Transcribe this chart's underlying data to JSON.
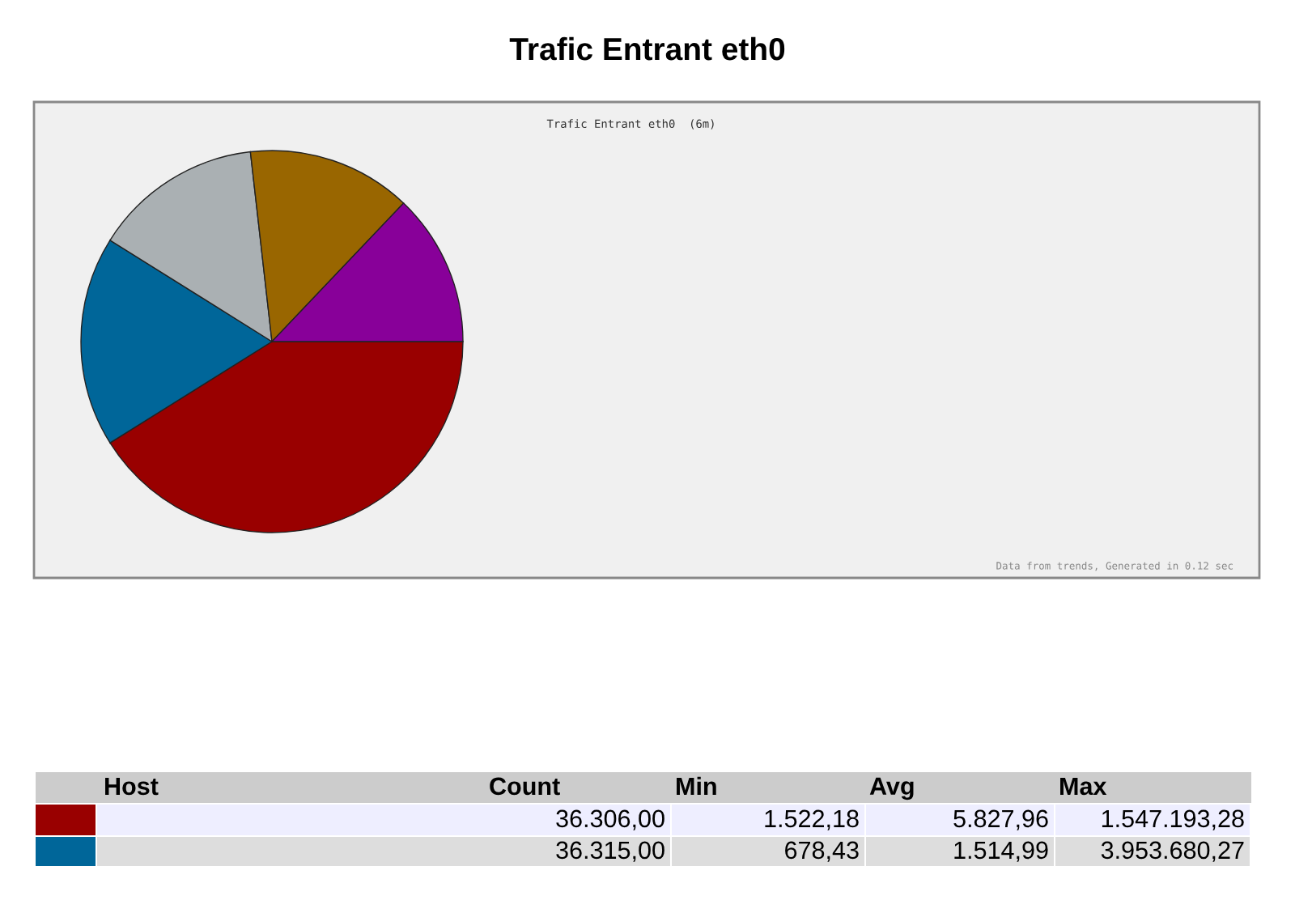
{
  "chart_data": {
    "type": "pie",
    "title": "Trafic Entrant eth0",
    "subtitle": "Trafic Entrant eth0  (6m)",
    "categories": [
      null,
      null,
      null,
      null,
      null
    ],
    "values": [
      41.1,
      17.8,
      14.3,
      13.9,
      12.9
    ],
    "colors": [
      "#990000",
      "#006699",
      "#aab0b3",
      "#996600",
      "#880099"
    ],
    "annotations": [
      "Host",
      "Count",
      "Min",
      "Avg",
      "Max",
      "36.306,00",
      "1.522,18",
      "5.827,96",
      "1.547.193,28",
      "36.315,00",
      "678,43",
      "1.514,99",
      "3.953.680,27",
      "Data from trends, Generated in 0.12 sec"
    ]
  }
}
